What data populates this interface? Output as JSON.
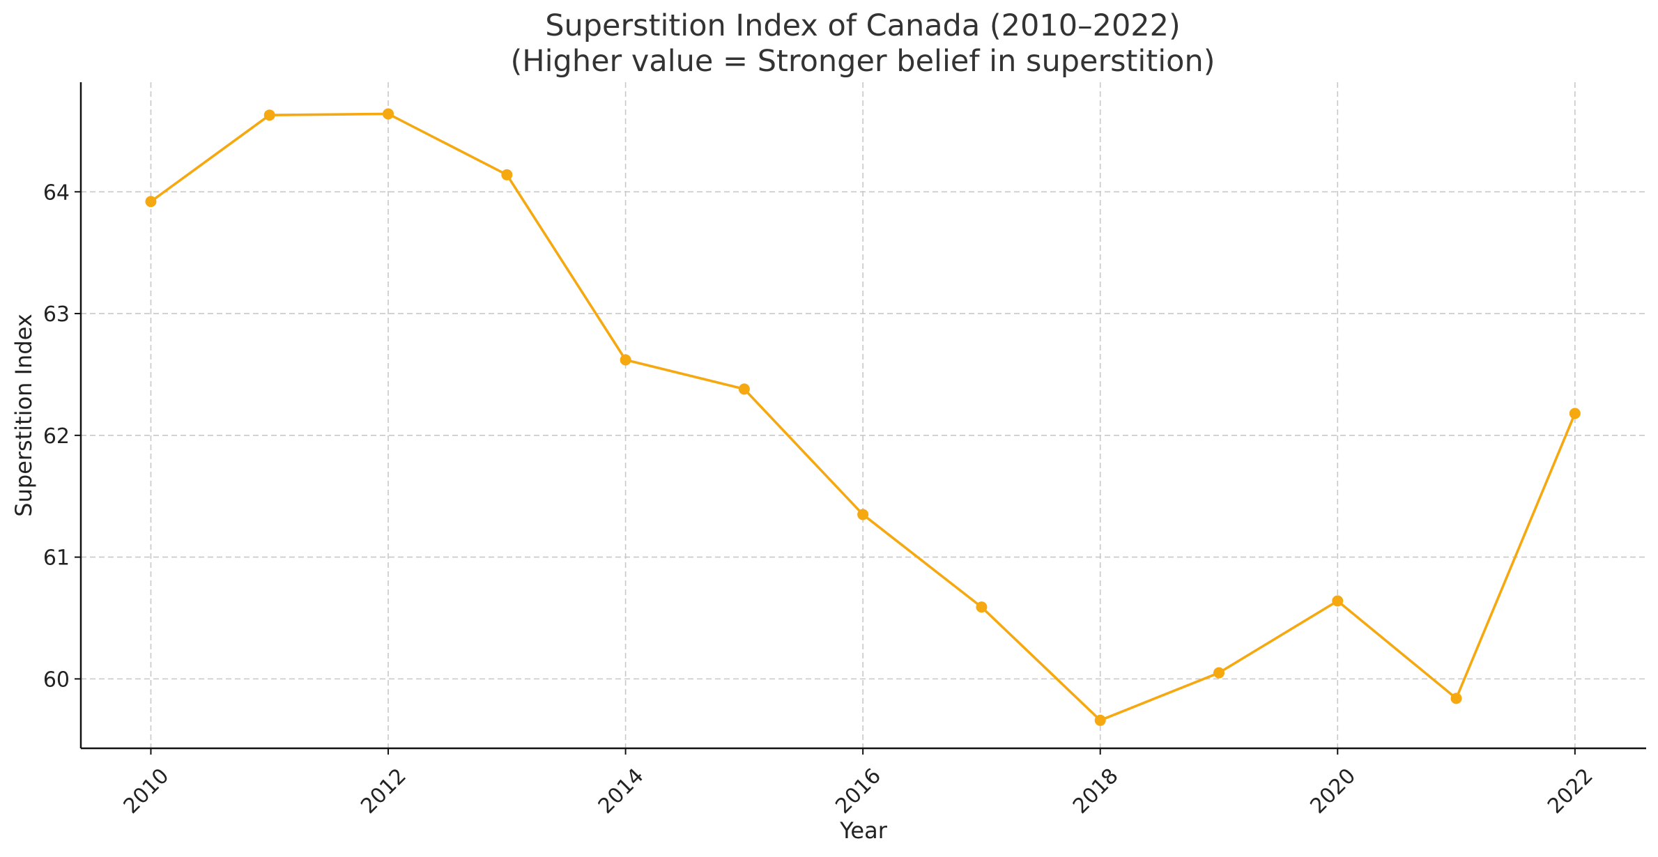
{
  "chart_data": {
    "type": "line",
    "title": "Superstition Index of Canada (2010–2022)",
    "subtitle": "(Higher value = Stronger belief in superstition)",
    "xlabel": "Year",
    "ylabel": "Superstition Index",
    "x": [
      2010,
      2011,
      2012,
      2013,
      2014,
      2015,
      2016,
      2017,
      2018,
      2019,
      2020,
      2021,
      2022
    ],
    "series": [
      {
        "values": [
          63.92,
          64.63,
          64.64,
          64.14,
          62.62,
          62.38,
          61.35,
          60.59,
          59.66,
          60.05,
          60.64,
          59.84,
          62.18
        ],
        "color": "#F5A810"
      }
    ],
    "x_ticks": [
      "2010",
      "2012",
      "2014",
      "2016",
      "2018",
      "2020",
      "2022"
    ],
    "y_ticks": [
      "60",
      "61",
      "62",
      "63",
      "64"
    ],
    "xlim": [
      2009.41,
      2022.6
    ],
    "ylim": [
      59.43,
      64.9
    ],
    "grid": true,
    "legend": "none"
  }
}
